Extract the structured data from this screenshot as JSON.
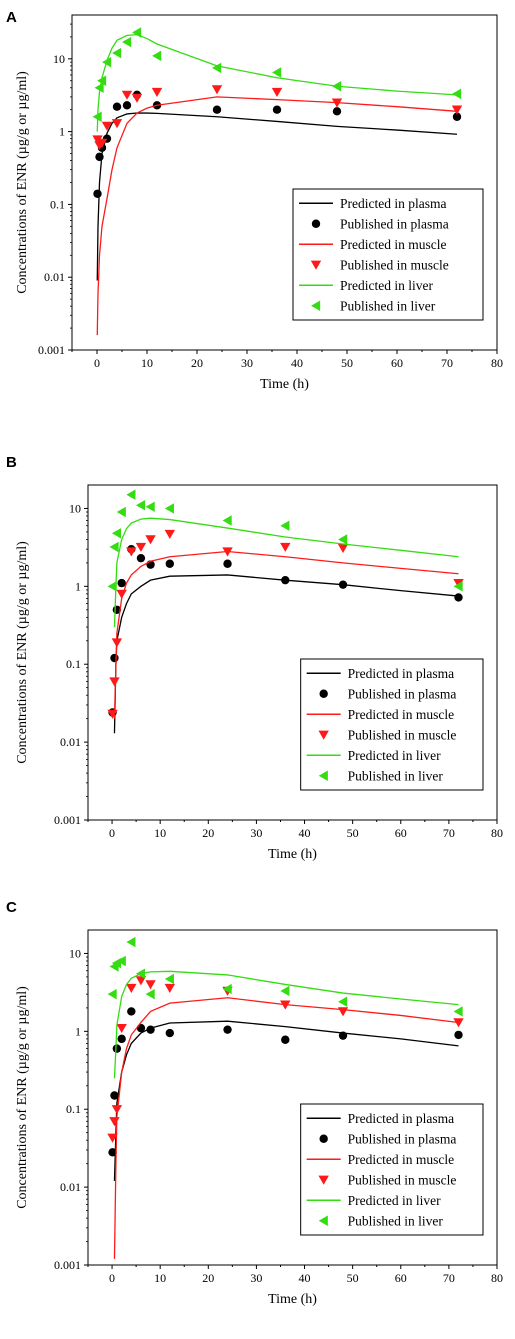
{
  "figure": {
    "colors": {
      "plasma": "#000000",
      "muscle": "#ff1a1a",
      "liver": "#33dd11"
    }
  },
  "chart_data": [
    {
      "panel": "A",
      "type": "line",
      "xlabel": "Time (h)",
      "ylabel": "Concentrations of ENR (µg/g or µg/ml)",
      "xlim": [
        -5,
        80
      ],
      "ylim": [
        0.001,
        40
      ],
      "yscale": "log",
      "xticks": [
        "0",
        "10",
        "20",
        "30",
        "40",
        "50",
        "60",
        "70",
        "80"
      ],
      "yticks": [
        "0.001",
        "0.01",
        "0.1",
        "1",
        "10"
      ],
      "legend_position": "lower-right",
      "series": [
        {
          "name": "Predicted in plasma",
          "kind": "line",
          "color": "#000000",
          "x": [
            0.05,
            0.2,
            0.5,
            1,
            2,
            3,
            4,
            6,
            8,
            10,
            12,
            24,
            36,
            48,
            60,
            72
          ],
          "y": [
            0.009,
            0.05,
            0.2,
            0.5,
            0.95,
            1.3,
            1.55,
            1.75,
            1.8,
            1.8,
            1.78,
            1.6,
            1.38,
            1.18,
            1.05,
            0.92
          ]
        },
        {
          "name": "Published in plasma",
          "kind": "marker",
          "marker": "circle",
          "color": "#000000",
          "x": [
            0.1,
            0.5,
            1,
            2,
            4,
            6,
            8,
            12,
            24,
            36,
            48,
            72
          ],
          "y": [
            0.14,
            0.45,
            0.6,
            0.8,
            2.2,
            2.3,
            3.2,
            2.3,
            2.0,
            2.0,
            1.9,
            1.6
          ]
        },
        {
          "name": "Predicted in muscle",
          "kind": "line",
          "color": "#ff1a1a",
          "x": [
            0.05,
            0.2,
            0.5,
            1,
            2,
            3,
            4,
            6,
            8,
            10,
            12,
            24,
            36,
            48,
            60,
            72
          ],
          "y": [
            0.0016,
            0.006,
            0.02,
            0.05,
            0.12,
            0.3,
            0.6,
            1.3,
            1.8,
            2.1,
            2.3,
            3.0,
            2.75,
            2.5,
            2.2,
            1.9
          ]
        },
        {
          "name": "Published in muscle",
          "kind": "marker",
          "marker": "triangle-down",
          "color": "#ff1a1a",
          "x": [
            0.1,
            0.5,
            1,
            2,
            4,
            6,
            8,
            12,
            24,
            36,
            48,
            72
          ],
          "y": [
            0.78,
            0.65,
            0.7,
            1.2,
            1.3,
            3.2,
            2.9,
            3.5,
            3.8,
            3.5,
            2.5,
            2.0
          ]
        },
        {
          "name": "Predicted in liver",
          "kind": "line",
          "color": "#33dd11",
          "x": [
            0.05,
            0.2,
            0.5,
            1,
            2,
            3,
            4,
            6,
            8,
            10,
            12,
            24,
            36,
            48,
            60,
            72
          ],
          "y": [
            1.0,
            2.0,
            3.5,
            5.5,
            9.5,
            14,
            18,
            21,
            21.5,
            19,
            16,
            8.0,
            5.5,
            4.2,
            3.6,
            3.2
          ]
        },
        {
          "name": "Published in liver",
          "kind": "marker",
          "marker": "triangle-left",
          "color": "#33dd11",
          "x": [
            0.1,
            0.5,
            1,
            2,
            4,
            6,
            8,
            12,
            24,
            36,
            48,
            72
          ],
          "y": [
            1.6,
            4.0,
            5.0,
            9.0,
            12,
            17,
            23,
            11,
            7.5,
            6.5,
            4.2,
            3.3
          ]
        }
      ]
    },
    {
      "panel": "B",
      "type": "line",
      "xlabel": "Time (h)",
      "ylabel": "Concentrations of ENR (µg/g or µg/ml)",
      "xlim": [
        -5,
        80
      ],
      "ylim": [
        0.001,
        20
      ],
      "yscale": "log",
      "xticks": [
        "0",
        "10",
        "20",
        "30",
        "40",
        "50",
        "60",
        "70",
        "80"
      ],
      "yticks": [
        "0.001",
        "0.01",
        "0.1",
        "1",
        "10"
      ],
      "legend_position": "lower-right",
      "series": [
        {
          "name": "Predicted in plasma",
          "kind": "line",
          "color": "#000000",
          "x": [
            0.5,
            0.8,
            1,
            2,
            3,
            4,
            6,
            8,
            12,
            24,
            36,
            48,
            60,
            72
          ],
          "y": [
            0.013,
            0.1,
            0.2,
            0.4,
            0.6,
            0.8,
            1.0,
            1.2,
            1.35,
            1.4,
            1.2,
            1.05,
            0.88,
            0.75
          ]
        },
        {
          "name": "Published in plasma",
          "kind": "marker",
          "marker": "circle",
          "color": "#000000",
          "x": [
            0.1,
            0.5,
            1,
            2,
            4,
            6,
            8,
            12,
            24,
            36,
            48,
            72
          ],
          "y": [
            0.024,
            0.12,
            0.5,
            1.1,
            3.0,
            2.3,
            1.9,
            1.95,
            1.95,
            1.2,
            1.05,
            0.72
          ]
        },
        {
          "name": "Predicted in muscle",
          "kind": "line",
          "color": "#ff1a1a",
          "x": [
            0.5,
            0.8,
            1,
            2,
            3,
            4,
            6,
            8,
            12,
            24,
            36,
            48,
            60,
            72
          ],
          "y": [
            0.02,
            0.1,
            0.25,
            0.7,
            1.1,
            1.4,
            1.8,
            2.1,
            2.4,
            2.8,
            2.4,
            2.0,
            1.7,
            1.45
          ]
        },
        {
          "name": "Published in muscle",
          "kind": "marker",
          "marker": "triangle-down",
          "color": "#ff1a1a",
          "x": [
            0.1,
            0.5,
            1,
            2,
            4,
            6,
            8,
            12,
            24,
            36,
            48,
            72
          ],
          "y": [
            0.023,
            0.06,
            0.19,
            0.8,
            2.8,
            3.2,
            4.0,
            4.7,
            2.8,
            3.2,
            3.1,
            1.1
          ]
        },
        {
          "name": "Predicted in liver",
          "kind": "line",
          "color": "#33dd11",
          "x": [
            0.5,
            0.8,
            1,
            2,
            3,
            4,
            6,
            8,
            12,
            24,
            36,
            48,
            60,
            72
          ],
          "y": [
            0.3,
            1.0,
            2.0,
            4.0,
            5.5,
            6.5,
            7.3,
            7.5,
            7.2,
            5.6,
            4.3,
            3.5,
            2.9,
            2.4
          ]
        },
        {
          "name": "Published in liver",
          "kind": "marker",
          "marker": "triangle-left",
          "color": "#33dd11",
          "x": [
            0.1,
            0.5,
            1,
            2,
            4,
            6,
            8,
            12,
            24,
            36,
            48,
            72
          ],
          "y": [
            1.0,
            3.2,
            4.8,
            9.0,
            15,
            11,
            10.5,
            10,
            7.0,
            6.0,
            4.0,
            1.0
          ]
        }
      ]
    },
    {
      "panel": "C",
      "type": "line",
      "xlabel": "Time (h)",
      "ylabel": "Concentrations of ENR (µg/g or µg/ml)",
      "xlim": [
        -5,
        80
      ],
      "ylim": [
        0.001,
        20
      ],
      "yscale": "log",
      "xticks": [
        "0",
        "10",
        "20",
        "30",
        "40",
        "50",
        "60",
        "70",
        "80"
      ],
      "yticks": [
        "0.001",
        "0.01",
        "0.1",
        "1",
        "10"
      ],
      "legend_position": "lower-right",
      "series": [
        {
          "name": "Predicted in plasma",
          "kind": "line",
          "color": "#000000",
          "x": [
            0.5,
            0.8,
            1,
            2,
            3,
            4,
            6,
            8,
            12,
            24,
            36,
            48,
            60,
            72
          ],
          "y": [
            0.012,
            0.05,
            0.12,
            0.3,
            0.5,
            0.7,
            0.95,
            1.1,
            1.28,
            1.35,
            1.15,
            0.95,
            0.8,
            0.65
          ]
        },
        {
          "name": "Published in plasma",
          "kind": "marker",
          "marker": "circle",
          "color": "#000000",
          "x": [
            0.1,
            0.5,
            1,
            2,
            4,
            6,
            8,
            12,
            24,
            36,
            48,
            72
          ],
          "y": [
            0.028,
            0.15,
            0.6,
            0.8,
            1.8,
            1.1,
            1.05,
            0.95,
            1.05,
            0.78,
            0.88,
            0.9
          ]
        },
        {
          "name": "Predicted in muscle",
          "kind": "line",
          "color": "#ff1a1a",
          "x": [
            0.5,
            0.8,
            1,
            2,
            3,
            4,
            6,
            8,
            12,
            24,
            36,
            48,
            60,
            72
          ],
          "y": [
            0.0012,
            0.02,
            0.08,
            0.3,
            0.6,
            0.9,
            1.3,
            1.8,
            2.3,
            2.7,
            2.2,
            1.9,
            1.6,
            1.3
          ]
        },
        {
          "name": "Published in muscle",
          "kind": "marker",
          "marker": "triangle-down",
          "color": "#ff1a1a",
          "x": [
            0.1,
            0.5,
            1,
            2,
            4,
            6,
            8,
            12,
            24,
            36,
            48,
            72
          ],
          "y": [
            0.043,
            0.07,
            0.1,
            1.1,
            3.6,
            4.5,
            4.0,
            3.6,
            3.3,
            2.2,
            1.8,
            1.3
          ]
        },
        {
          "name": "Predicted in liver",
          "kind": "line",
          "color": "#33dd11",
          "x": [
            0.5,
            0.8,
            1,
            2,
            3,
            4,
            6,
            8,
            12,
            24,
            36,
            48,
            60,
            72
          ],
          "y": [
            0.25,
            0.6,
            1.2,
            2.8,
            4.0,
            4.8,
            5.5,
            5.8,
            5.9,
            5.3,
            4.0,
            3.1,
            2.6,
            2.2
          ]
        },
        {
          "name": "Published in liver",
          "kind": "marker",
          "marker": "triangle-left",
          "color": "#33dd11",
          "x": [
            0.1,
            0.5,
            1,
            2,
            4,
            6,
            8,
            12,
            24,
            36,
            48,
            72
          ],
          "y": [
            3.0,
            6.8,
            7.5,
            8.0,
            14,
            5.5,
            3.0,
            4.7,
            3.5,
            3.3,
            2.4,
            1.8
          ]
        }
      ]
    }
  ]
}
